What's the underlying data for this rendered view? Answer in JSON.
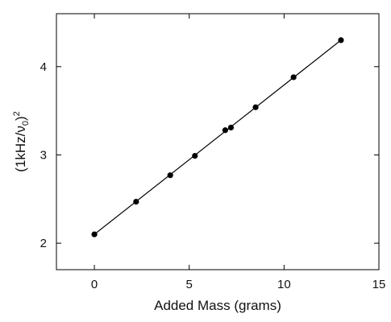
{
  "chart_data": {
    "type": "scatter",
    "title": "",
    "xlabel": "Added Mass (grams)",
    "ylabel": {
      "open": "(1kHz/",
      "nu": "ν",
      "sub": "0",
      "close": ")",
      "sup": "2"
    },
    "xlim": [
      -2,
      15
    ],
    "ylim": [
      1.7,
      4.6
    ],
    "x_ticks": [
      0,
      5,
      10,
      15
    ],
    "y_ticks": [
      2,
      3,
      4
    ],
    "x_tick_labels": [
      "0",
      "5",
      "10",
      "15"
    ],
    "y_tick_labels": [
      "2",
      "3",
      "4"
    ],
    "grid": false,
    "legend": "none",
    "series": [
      {
        "x": [
          0,
          2.2,
          4.0,
          5.3,
          6.9,
          7.2,
          8.5,
          10.5,
          13.0
        ],
        "y": [
          2.1,
          2.47,
          2.77,
          2.99,
          3.28,
          3.31,
          3.54,
          3.88,
          4.3
        ],
        "marker": "circle",
        "color": "#000000"
      }
    ],
    "fit_line": {
      "x": [
        0,
        13.0
      ],
      "y": [
        2.1,
        4.3
      ],
      "color": "#000000"
    }
  }
}
